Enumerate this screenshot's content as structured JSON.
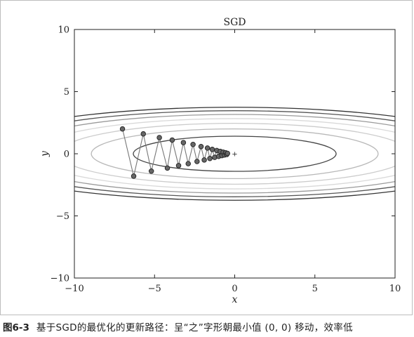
{
  "chart_data": {
    "type": "line",
    "title": "SGD",
    "xlabel": "x",
    "ylabel": "y",
    "xlim": [
      -10,
      10
    ],
    "ylim": [
      -10,
      10
    ],
    "xticks": [
      -10,
      -5,
      0,
      5,
      10
    ],
    "yticks": [
      -10,
      -5,
      0,
      5,
      10
    ],
    "xtick_labels": [
      "−10",
      "−5",
      "0",
      "5",
      "10"
    ],
    "ytick_labels": [
      "−10",
      "−5",
      "0",
      "5",
      "10"
    ],
    "grid": false,
    "function": "f(x, y) = x^2 / 20 + y^2",
    "contour_levels": [
      {
        "level": 2,
        "color": "#444444"
      },
      {
        "level": 4,
        "color": "#b8b8b8"
      },
      {
        "level": 6,
        "color": "#cccccc"
      },
      {
        "level": 8,
        "color": "#d9d9d9"
      },
      {
        "level": 10,
        "color": "#9a9a9a"
      },
      {
        "level": 12,
        "color": "#555555"
      },
      {
        "level": 14,
        "color": "#333333"
      }
    ],
    "minimum": {
      "x": 0,
      "y": 0,
      "marker": "+"
    },
    "series": [
      {
        "x": [
          -7.0,
          -6.3,
          -5.7,
          -5.2,
          -4.7,
          -4.2,
          -3.9,
          -3.5,
          -3.2,
          -2.9,
          -2.6,
          -2.35,
          -2.1,
          -1.9,
          -1.7,
          -1.55,
          -1.4,
          -1.25,
          -1.12,
          -1.0,
          -0.9,
          -0.8,
          -0.72,
          -0.64,
          -0.57,
          -0.5,
          -0.45
        ],
        "y": [
          2.0,
          -1.8,
          1.6,
          -1.4,
          1.3,
          -1.15,
          1.1,
          -0.95,
          0.9,
          -0.8,
          0.75,
          -0.62,
          0.58,
          -0.5,
          0.46,
          -0.38,
          0.35,
          -0.29,
          0.26,
          -0.21,
          0.19,
          -0.15,
          0.13,
          -0.1,
          0.08,
          -0.06,
          0.03
        ],
        "color": "#777777",
        "marker_fill": "#666666",
        "marker_stroke": "#222222"
      }
    ]
  },
  "caption": {
    "figure_number": "图6-3",
    "text": "基于SGD的最优化的更新路径：呈“之”字形朝最小值 (0, 0) 移动，效率低"
  }
}
